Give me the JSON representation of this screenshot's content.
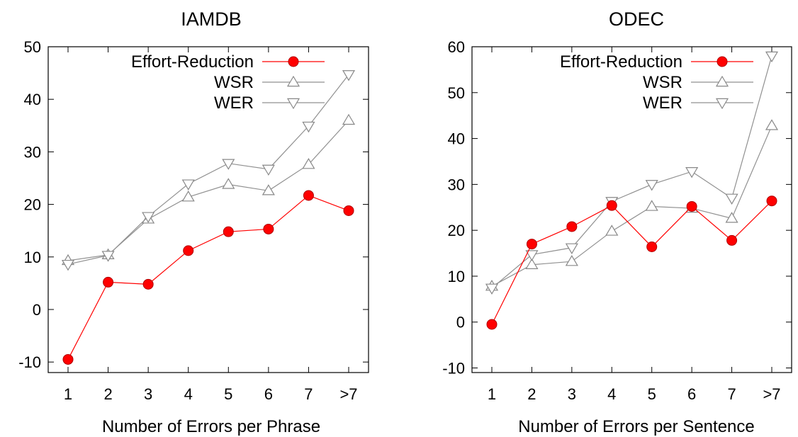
{
  "chart_data": [
    {
      "type": "line",
      "title": "IAMDB",
      "xlabel": "Number of Errors per Phrase",
      "ylabel": "",
      "categories": [
        "1",
        "2",
        "3",
        "4",
        "5",
        "6",
        "7",
        ">7"
      ],
      "ylim": [
        -12,
        50
      ],
      "yticks": [
        -10,
        0,
        10,
        20,
        30,
        40,
        50
      ],
      "grid": false,
      "legend": "top-right",
      "series": [
        {
          "name": "Effort-Reduction",
          "marker": "filled-circle",
          "color": "#ff0000",
          "values": [
            -9.5,
            5.2,
            4.8,
            11.2,
            14.8,
            15.3,
            21.7,
            18.8
          ]
        },
        {
          "name": "WSR",
          "marker": "triangle-up",
          "color": "#a0a0a0",
          "values": [
            9.3,
            10.4,
            17.2,
            21.4,
            23.8,
            22.6,
            27.6,
            36.0
          ]
        },
        {
          "name": "WER",
          "marker": "triangle-down",
          "color": "#a0a0a0",
          "values": [
            8.6,
            10.3,
            17.7,
            23.9,
            27.8,
            26.7,
            34.9,
            44.7
          ]
        }
      ]
    },
    {
      "type": "line",
      "title": "ODEC",
      "xlabel": "Number of Errors per Sentence",
      "ylabel": "",
      "categories": [
        "1",
        "2",
        "3",
        "4",
        "5",
        "6",
        "7",
        ">7"
      ],
      "ylim": [
        -11,
        60
      ],
      "yticks": [
        -10,
        0,
        10,
        20,
        30,
        40,
        50,
        60
      ],
      "grid": false,
      "legend": "top-right",
      "series": [
        {
          "name": "Effort-Reduction",
          "marker": "filled-circle",
          "color": "#ff0000",
          "values": [
            -0.5,
            17.0,
            20.8,
            25.4,
            16.4,
            25.2,
            17.8,
            26.4
          ]
        },
        {
          "name": "WSR",
          "marker": "triangle-up",
          "color": "#a0a0a0",
          "values": [
            7.8,
            12.5,
            13.2,
            19.8,
            25.2,
            24.8,
            22.6,
            42.8
          ]
        },
        {
          "name": "WER",
          "marker": "triangle-down",
          "color": "#a0a0a0",
          "values": [
            7.4,
            14.7,
            16.2,
            26.3,
            30.0,
            32.8,
            27.0,
            58.0
          ]
        }
      ]
    }
  ]
}
